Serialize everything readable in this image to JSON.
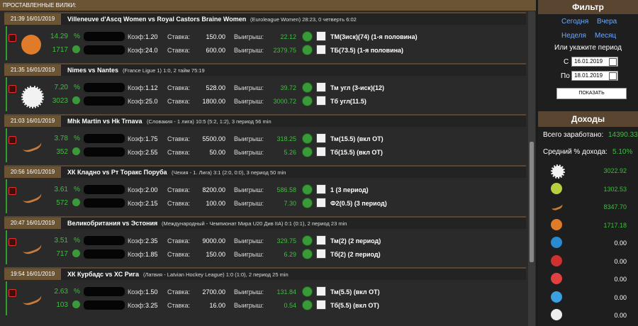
{
  "left": {
    "title": "ПРОСТАВЛЕННЫЕ ВИЛКИ:",
    "labels": {
      "coef": "Коэф:",
      "stake": "Ставка:",
      "win": "Выигрыш:",
      "pct": "%"
    },
    "bets": [
      {
        "time": "21:39 16/01/2019",
        "match": "Villeneuve d'Ascq Women vs Royal Castors Braine Women",
        "info": "(Euroleague Women) 28:23,  0 четверть  6:02",
        "rows": [
          {
            "num": "14.29",
            "coef": "1.20",
            "stake": "150.00",
            "win": "22.12",
            "bet": "ТМ(3иск)(74) (1-я половина)"
          },
          {
            "num": "1717",
            "coef": "24.0",
            "stake": "600.00",
            "win": "2379.75",
            "bet": "ТБ(73.5) (1-я половина)"
          }
        ]
      },
      {
        "time": "21:35 16/01/2019",
        "match": "Nimes vs Nantes",
        "info": "(France Ligue 1) 1:0,  2 тайм  75:19",
        "rows": [
          {
            "num": "7.20",
            "coef": "1.12",
            "stake": "528.00",
            "win": "39.72",
            "bet": "Тм угл (3-иск)(12)"
          },
          {
            "num": "3023",
            "coef": "25.0",
            "stake": "1800.00",
            "win": "3000.72",
            "bet": "Тб угл(11.5)"
          }
        ]
      },
      {
        "time": "21:03 16/01/2019",
        "match": "Mhk Martin vs Hk Trnava",
        "info": "(Словакия - 1 лига) 10:5 (5:2, 1:2),  3 период  56 min",
        "rows": [
          {
            "num": "3.78",
            "coef": "1.75",
            "stake": "5500.00",
            "win": "318.25",
            "bet": "Тм(15.5) (вкл ОТ)"
          },
          {
            "num": "352",
            "coef": "2.55",
            "stake": "50.00",
            "win": "5.26",
            "bet": "Тб(15.5) (вкл ОТ)"
          }
        ]
      },
      {
        "time": "20:56 16/01/2019",
        "match": "ХК Кладно vs Рт Торакс Поруба",
        "info": "(Чехия - 1. Лига) 3:1 (2:0, 0:0),  3 период  50 min",
        "rows": [
          {
            "num": "3.61",
            "coef": "2.00",
            "stake": "8200.00",
            "win": "586.58",
            "bet": "1 (3 период)"
          },
          {
            "num": "572",
            "coef": "2.15",
            "stake": "100.00",
            "win": "7.30",
            "bet": "Ф2(0.5) (3 период)"
          }
        ]
      },
      {
        "time": "20:47 16/01/2019",
        "match": "Великобритания vs Эстония",
        "info": "(Международный - Чемпионат Мира U20 Див IIA) 0:1 (0:1),  2 период  23 min",
        "rows": [
          {
            "num": "3.51",
            "coef": "2.35",
            "stake": "9000.00",
            "win": "329.75",
            "bet": "Тм(2) (2 период)"
          },
          {
            "num": "717",
            "coef": "1.85",
            "stake": "150.00",
            "win": "6.29",
            "bet": "Тб(2) (2 период)"
          }
        ]
      },
      {
        "time": "19:54 16/01/2019",
        "match": "ХК Курбадс vs ХС Рига",
        "info": "(Латвия - Latvian Hockey League) 1:0 (1:0),  2 период  25 min",
        "rows": [
          {
            "num": "2.63",
            "coef": "1.50",
            "stake": "2700.00",
            "win": "131.84",
            "bet": "Тм(5.5) (вкл ОТ)"
          },
          {
            "num": "103",
            "coef": "3.25",
            "stake": "16.00",
            "win": "0.54",
            "bet": "Тб(5.5) (вкл ОТ)"
          }
        ]
      }
    ]
  },
  "filter": {
    "title": "Фильтр",
    "links": [
      "Сегодня",
      "Вчера",
      "Неделя",
      "Месяц"
    ],
    "period_label": "Или укажите период",
    "from_label": "С",
    "from": "16.01.2019",
    "to_label": "По",
    "to": "18.01.2019",
    "button": "ПОКАЗАТЬ"
  },
  "income": {
    "title": "Доходы",
    "total_label": "Всего заработано:",
    "total": "14390.33",
    "avg_label": "Средний % дохода:",
    "avg": "5.10%",
    "sports": [
      "3022.92",
      "1302.53",
      "8347.70",
      "1717.18",
      "0.00",
      "0.00",
      "0.00",
      "0.00",
      "0.00"
    ]
  }
}
